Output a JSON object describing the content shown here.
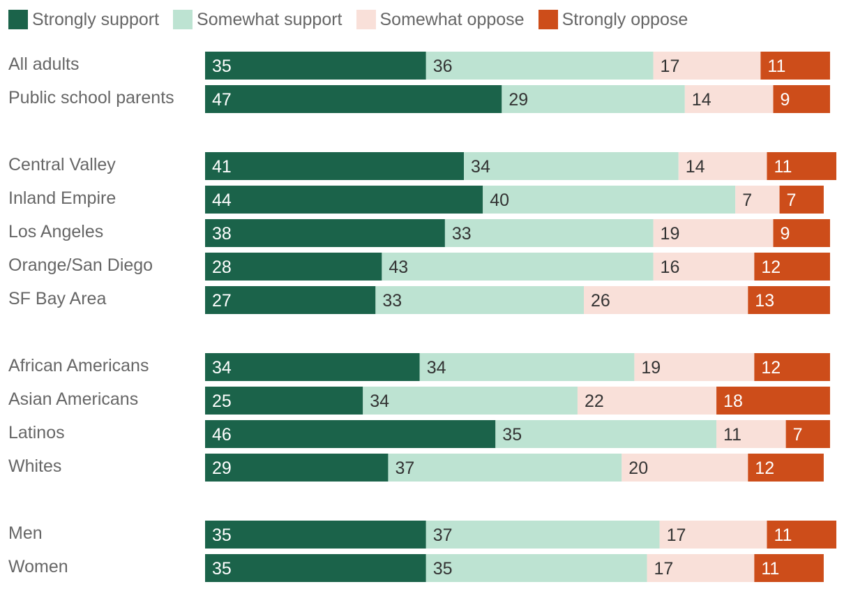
{
  "chart_data": {
    "type": "bar",
    "orientation": "horizontal",
    "stacked": true,
    "legend_position": "top-left",
    "grid": false,
    "colors": [
      "#1b634a",
      "#bde3d2",
      "#f9e0d9",
      "#cd4d1a"
    ],
    "legend": [
      "Strongly support",
      "Somewhat support",
      "Somewhat oppose",
      "Strongly oppose"
    ],
    "groups": [
      [
        "All adults",
        "Public school parents"
      ],
      [
        "Central Valley",
        "Inland Empire",
        "Los Angeles",
        "Orange/San Diego",
        "SF Bay Area"
      ],
      [
        "African Americans",
        "Asian Americans",
        "Latinos",
        "Whites"
      ],
      [
        "Men",
        "Women"
      ]
    ],
    "categories": [
      "All adults",
      "Public school parents",
      "Central Valley",
      "Inland Empire",
      "Los Angeles",
      "Orange/San Diego",
      "SF Bay Area",
      "African Americans",
      "Asian Americans",
      "Latinos",
      "Whites",
      "Men",
      "Women"
    ],
    "series": [
      {
        "name": "Strongly support",
        "values": [
          35,
          47,
          41,
          44,
          38,
          28,
          27,
          34,
          25,
          46,
          29,
          35,
          35
        ]
      },
      {
        "name": "Somewhat support",
        "values": [
          36,
          29,
          34,
          40,
          33,
          43,
          33,
          34,
          34,
          35,
          37,
          37,
          35
        ]
      },
      {
        "name": "Somewhat oppose",
        "values": [
          17,
          14,
          14,
          7,
          19,
          16,
          26,
          19,
          22,
          11,
          20,
          17,
          17
        ]
      },
      {
        "name": "Strongly oppose",
        "values": [
          11,
          9,
          11,
          7,
          9,
          12,
          13,
          12,
          18,
          7,
          12,
          11,
          11
        ]
      }
    ],
    "xlim": [
      0,
      100
    ]
  }
}
